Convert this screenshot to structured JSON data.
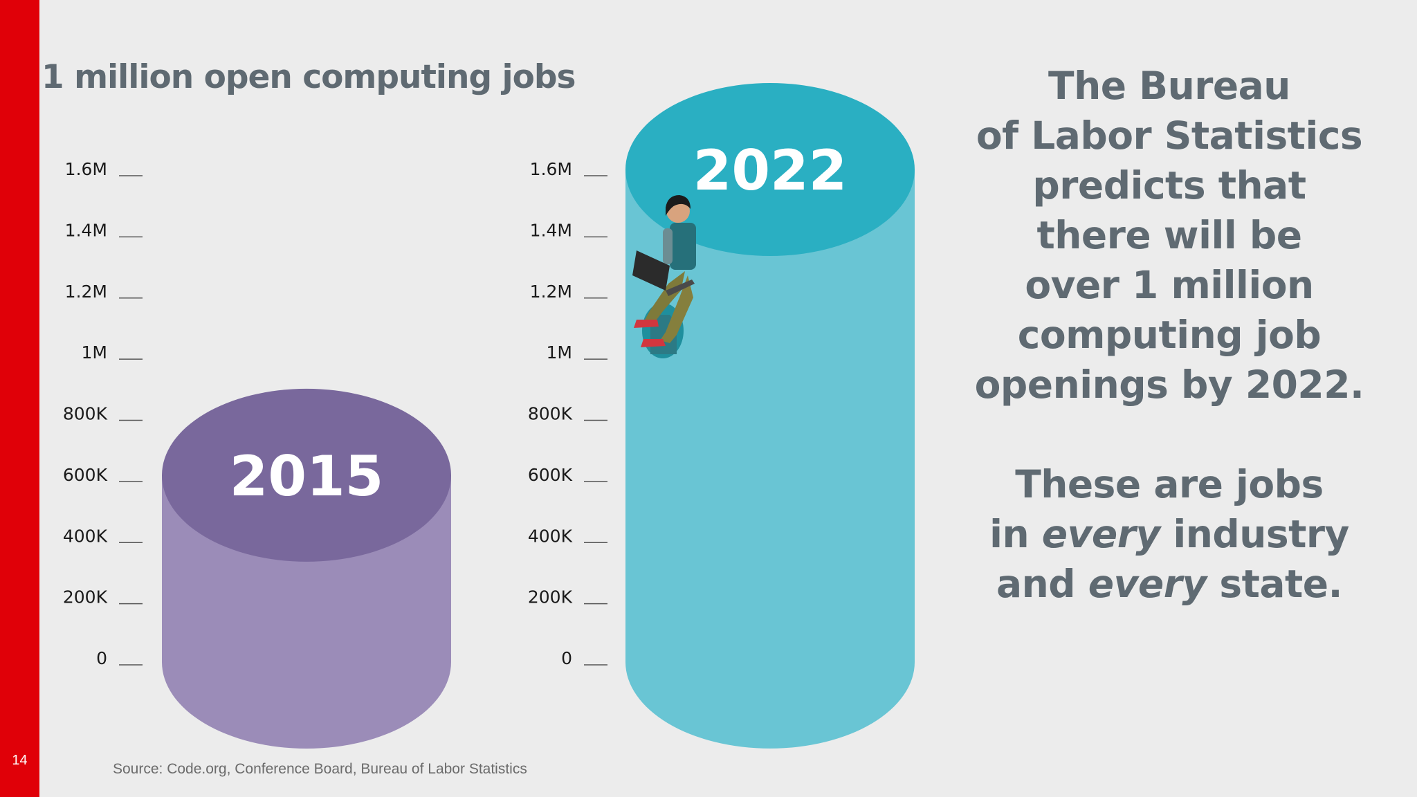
{
  "slide_number": "14",
  "title": "1 million open computing jobs",
  "right_text": {
    "paragraph1_lines": [
      "The Bureau",
      "of Labor Statistics",
      "predicts that",
      "there will be",
      "over 1 million",
      "computing job",
      "openings by 2022."
    ],
    "paragraph2": {
      "line1": "These are jobs",
      "line2_pre": "in ",
      "line2_em": "every",
      "line2_post": " industry",
      "line3_pre": "and ",
      "line3_em": "every",
      "line3_post": " state."
    }
  },
  "source": "Source: Code.org, Conference Board, Bureau of Labor Statistics",
  "colors": {
    "accent_red": "#e00008",
    "purple_top": "#79689c",
    "purple_body": "#9b8cb8",
    "teal_top": "#2aafc2",
    "teal_body": "#69c5d4",
    "text_gray": "#5f6a72"
  },
  "chart_data": {
    "type": "bar",
    "style": "3d-cylinder",
    "categories": [
      "2015",
      "2022"
    ],
    "values": [
      600000,
      1600000
    ],
    "ylim": [
      0,
      1600000
    ],
    "yticks": [
      {
        "value": 0,
        "label": "0"
      },
      {
        "value": 200000,
        "label": "200K"
      },
      {
        "value": 400000,
        "label": "400K"
      },
      {
        "value": 600000,
        "label": "600K"
      },
      {
        "value": 800000,
        "label": "800K"
      },
      {
        "value": 1000000,
        "label": "1M"
      },
      {
        "value": 1200000,
        "label": "1.2M"
      },
      {
        "value": 1400000,
        "label": "1.4M"
      },
      {
        "value": 1600000,
        "label": "1.6M"
      }
    ],
    "grid": false,
    "legend": "none"
  }
}
